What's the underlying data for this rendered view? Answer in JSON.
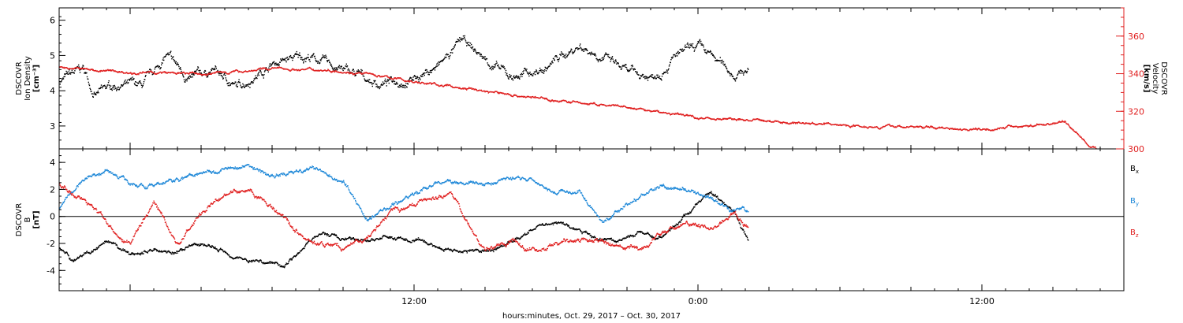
{
  "chart_data": [
    {
      "type": "scatter",
      "panel": "top",
      "x_range_hours": [
        -3.0,
        42.0
      ],
      "x_ticks": [
        {
          "hour": 12,
          "label": "12:00"
        },
        {
          "hour": 24,
          "label": "0:00"
        },
        {
          "hour": 36,
          "label": "12:00"
        }
      ],
      "data_end_hour": 26.1,
      "left_axis": {
        "label_lines": [
          "DSCOVR",
          "Ion Density"
        ],
        "unit_line": "[cm⁻³]",
        "range": [
          2.35,
          6.35
        ],
        "ticks": [
          3,
          4,
          5,
          6
        ],
        "color": "#000000"
      },
      "right_axis": {
        "label_lines": [
          "DSCOVR",
          "Velocity"
        ],
        "unit_line": "[km/s]",
        "range": [
          300,
          375
        ],
        "ticks": [
          300,
          320,
          340,
          360
        ],
        "color": "#e02020"
      },
      "series": [
        {
          "axis": "left",
          "color": "#000000",
          "noise": 0.22,
          "x": [
            -3.0,
            -2.0,
            -1.5,
            -0.5,
            0.5,
            1.0,
            1.5,
            2.5,
            3.5,
            4.5,
            6.0,
            7.5,
            9.0,
            10.5,
            12.0,
            13.0,
            14.0,
            15.0,
            16.0,
            17.5,
            18.0,
            19.0,
            20.0,
            21.0,
            22.0,
            23.0,
            24.0,
            25.5,
            26.1
          ],
          "y": [
            4.3,
            4.6,
            3.9,
            4.2,
            4.1,
            4.5,
            5.0,
            4.3,
            4.6,
            4.1,
            4.8,
            5.0,
            4.6,
            4.2,
            4.4,
            4.7,
            5.4,
            4.9,
            4.4,
            4.6,
            4.9,
            5.3,
            5.0,
            4.5,
            4.4,
            5.0,
            5.2,
            4.5,
            4.6
          ]
        },
        {
          "axis": "right",
          "color": "#e02020",
          "noise": 1.2,
          "x": [
            -3.0,
            -1.5,
            0.0,
            3.0,
            6.0,
            9.0,
            12.0,
            15.0,
            18.0,
            21.0,
            24.0,
            27.0,
            30.0,
            33.0,
            36.0,
            38.5,
            39.5,
            40.5,
            40.9
          ],
          "y": [
            344,
            342,
            341,
            340,
            343,
            342,
            336,
            331,
            326,
            322,
            317,
            315,
            313,
            312,
            311,
            313,
            315,
            302,
            300
          ]
        }
      ]
    },
    {
      "type": "scatter",
      "panel": "bottom",
      "x_range_hours": [
        -3.0,
        42.0
      ],
      "x_ticks": [
        {
          "hour": 12,
          "label": "12:00"
        },
        {
          "hour": 24,
          "label": "0:00"
        },
        {
          "hour": 36,
          "label": "12:00"
        }
      ],
      "y_axis": {
        "label_lines": [
          "DSCOVR",
          "B"
        ],
        "unit_line": "[nT]",
        "range": [
          -5.5,
          5.0
        ],
        "ticks": [
          -4,
          -2,
          0,
          2,
          4
        ]
      },
      "zero_line": true,
      "legend": [
        {
          "base": "B",
          "sub": "x",
          "color": "#000000"
        },
        {
          "base": "B",
          "sub": "y",
          "color": "#1e88d8"
        },
        {
          "base": "B",
          "sub": "z",
          "color": "#e02020"
        }
      ],
      "series": [
        {
          "name": "Bx",
          "color": "#000000",
          "noise": 0.25,
          "x": [
            -3.0,
            -2.5,
            -1.0,
            0.0,
            1.0,
            2.0,
            3.0,
            5.0,
            6.5,
            8.0,
            9.5,
            11.0,
            12.5,
            13.5,
            15.0,
            16.5,
            17.0,
            18.0,
            19.5,
            20.5,
            21.5,
            22.5,
            23.5,
            24.5,
            25.5,
            26.1
          ],
          "y": [
            -2.2,
            -3.2,
            -2.0,
            -2.8,
            -2.4,
            -2.6,
            -2.0,
            -3.2,
            -3.5,
            -1.2,
            -1.8,
            -1.5,
            -2.0,
            -2.4,
            -2.6,
            -1.5,
            -0.8,
            -0.3,
            -1.5,
            -1.8,
            -1.2,
            -1.5,
            0.2,
            1.8,
            0.6,
            -1.7
          ]
        },
        {
          "name": "By",
          "color": "#1e88d8",
          "noise": 0.28,
          "x": [
            -3.0,
            -2.0,
            -1.0,
            0.0,
            1.0,
            3.0,
            5.0,
            6.0,
            8.0,
            9.0,
            10.0,
            11.5,
            13.0,
            15.0,
            16.5,
            18.0,
            19.0,
            20.0,
            21.5,
            22.5,
            23.5,
            24.5,
            25.3,
            26.1
          ],
          "y": [
            0.6,
            2.8,
            3.5,
            2.6,
            2.2,
            3.4,
            3.8,
            3.0,
            3.6,
            2.6,
            -0.2,
            1.2,
            2.6,
            2.4,
            3.0,
            2.0,
            1.8,
            -0.4,
            1.5,
            2.2,
            2.0,
            1.2,
            0.5,
            0.5
          ]
        },
        {
          "name": "Bz",
          "color": "#e02020",
          "noise": 0.32,
          "x": [
            -3.0,
            -2.0,
            -1.0,
            0.0,
            1.0,
            2.0,
            3.5,
            5.0,
            6.0,
            7.5,
            9.0,
            10.0,
            11.0,
            12.5,
            13.5,
            15.0,
            16.0,
            17.5,
            18.5,
            20.0,
            21.5,
            22.5,
            23.5,
            24.5,
            25.5,
            26.1
          ],
          "y": [
            2.4,
            1.2,
            -0.5,
            -2.0,
            1.0,
            -2.0,
            1.5,
            2.2,
            0.5,
            -1.8,
            -2.4,
            -1.6,
            0.4,
            1.2,
            2.0,
            -2.6,
            -2.0,
            -2.4,
            -1.8,
            -2.0,
            -2.6,
            -1.0,
            -0.5,
            -0.9,
            0.4,
            -1.0
          ]
        }
      ]
    }
  ],
  "xlabel": "hours:minutes, Oct. 29, 2017 – Oct. 30, 2017"
}
